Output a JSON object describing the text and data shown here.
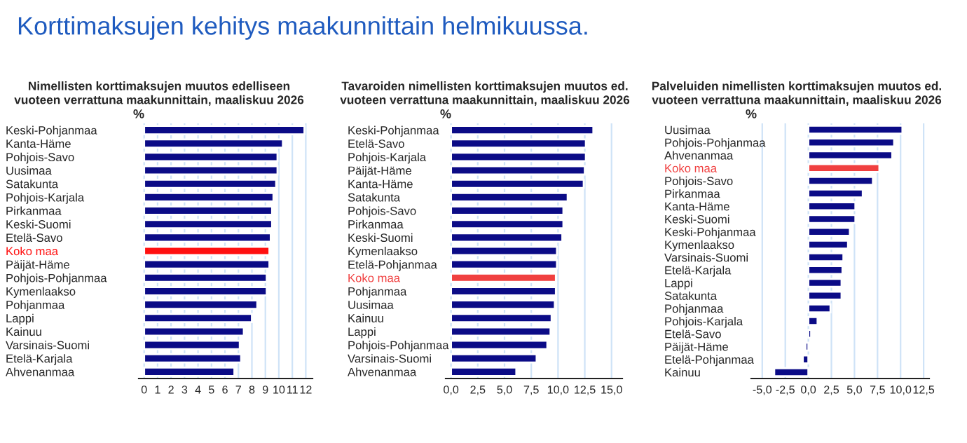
{
  "chart_data": [
    {
      "type": "bar",
      "orientation": "horizontal",
      "title": "Nimellisten korttimaksujen muutos edelliseen\nvuoteen verrattuna maakunnittain, maaliskuu 2026",
      "annotations": [
        "Korttimaksujen kehitys maakunnittain helmikuussa.",
        "%"
      ],
      "categories": [
        "Keski-Pohjanmaa",
        "Kanta-Häme",
        "Pohjois-Savo",
        "Uusimaa",
        "Satakunta",
        "Pohjois-Karjala",
        "Pirkanmaa",
        "Keski-Suomi",
        "Etelä-Savo",
        "Koko maa",
        "Päijät-Häme",
        "Pohjois-Pohjanmaa",
        "Kymenlaakso",
        "Pohjanmaa",
        "Lappi",
        "Kainuu",
        "Varsinais-Suomi",
        "Etelä-Karjala",
        "Ahvenanmaa"
      ],
      "values": [
        11.9,
        10.3,
        9.9,
        9.9,
        9.8,
        9.6,
        9.5,
        9.5,
        9.4,
        9.3,
        9.3,
        9.1,
        9.1,
        8.4,
        8.0,
        7.4,
        7.1,
        7.2,
        6.7
      ],
      "colors": [
        "#0b0b86",
        "#0b0b86",
        "#0b0b86",
        "#0b0b86",
        "#0b0b86",
        "#0b0b86",
        "#0b0b86",
        "#0b0b86",
        "#0b0b86",
        "#ff1010",
        "#0b0b86",
        "#0b0b86",
        "#0b0b86",
        "#0b0b86",
        "#0b0b86",
        "#0b0b86",
        "#0b0b86",
        "#0b0b86",
        "#0b0b86"
      ],
      "xlim": [
        -0.4,
        12.5
      ],
      "xticks": [
        0,
        1,
        2,
        3,
        4,
        5,
        6,
        7,
        8,
        9,
        10,
        11,
        12
      ],
      "grid": "x"
    },
    {
      "type": "bar",
      "orientation": "horizontal",
      "title": "Tavaroiden nimellisten korttimaksujen muutos ed.\nvuoteen verrattuna maakunnittain, maaliskuu 2026",
      "annotations": [
        "%"
      ],
      "categories": [
        "Keski-Pohjanmaa",
        "Etelä-Savo",
        "Pohjois-Karjala",
        "Päijät-Häme",
        "Kanta-Häme",
        "Satakunta",
        "Pohjois-Savo",
        "Pirkanmaa",
        "Keski-Suomi",
        "Kymenlaakso",
        "Etelä-Pohjanmaa",
        "Koko maa",
        "Pohjanmaa",
        "Uusimaa",
        "Kainuu",
        "Lappi",
        "Pohjois-Pohjanmaa",
        "Varsinais-Suomi",
        "Ahvenanmaa"
      ],
      "values": [
        13.3,
        12.6,
        12.6,
        12.5,
        12.4,
        10.9,
        10.5,
        10.5,
        10.4,
        9.9,
        9.9,
        9.8,
        9.8,
        9.7,
        9.4,
        9.3,
        9.0,
        8.0,
        6.1
      ],
      "colors": [
        "#0b0b86",
        "#0b0b86",
        "#0b0b86",
        "#0b0b86",
        "#0b0b86",
        "#0b0b86",
        "#0b0b86",
        "#0b0b86",
        "#0b0b86",
        "#0b0b86",
        "#0b0b86",
        "#f04040",
        "#0b0b86",
        "#0b0b86",
        "#0b0b86",
        "#0b0b86",
        "#0b0b86",
        "#0b0b86",
        "#0b0b86"
      ],
      "xlim": [
        -0.5,
        16
      ],
      "xticks": [
        {
          "value": 0,
          "label": "0,0"
        },
        {
          "value": 2.5,
          "label": "2,5"
        },
        {
          "value": 5,
          "label": "5,0"
        },
        {
          "value": 7.5,
          "label": "7,5"
        },
        {
          "value": 10,
          "label": "10,0"
        },
        {
          "value": 12.5,
          "label": "12,5"
        },
        {
          "value": 15,
          "label": "15,0"
        }
      ],
      "grid": "x"
    },
    {
      "type": "bar",
      "orientation": "horizontal",
      "title": "Palveluiden nimellisten korttimaksujen muutos ed.\nvuoteen verrattuna maakunnittain, maaliskuu 2026",
      "annotations": [
        "%"
      ],
      "categories": [
        "Uusimaa",
        "Pohjois-Pohjanmaa",
        "Ahvenanmaa",
        "Koko maa",
        "Pohjois-Savo",
        "Pirkanmaa",
        "Kanta-Häme",
        "Keski-Suomi",
        "Keski-Pohjanmaa",
        "Kymenlaakso",
        "Varsinais-Suomi",
        "Etelä-Karjala",
        "Lappi",
        "Satakunta",
        "Pohjanmaa",
        "Pohjois-Karjala",
        "Etelä-Savo",
        "Päijät-Häme",
        "Etelä-Pohjanmaa",
        "Kainuu"
      ],
      "values": [
        10.2,
        9.3,
        9.1,
        7.7,
        7.0,
        5.9,
        5.1,
        5.1,
        4.5,
        4.3,
        3.8,
        3.7,
        3.6,
        3.6,
        2.4,
        1.0,
        0.3,
        -0.3,
        -0.6,
        -3.7
      ],
      "colors": [
        "#0b0b86",
        "#0b0b86",
        "#0b0b86",
        "#f04040",
        "#0b0b86",
        "#0b0b86",
        "#0b0b86",
        "#0b0b86",
        "#0b0b86",
        "#0b0b86",
        "#0b0b86",
        "#0b0b86",
        "#0b0b86",
        "#0b0b86",
        "#0b0b86",
        "#0b0b86",
        "#0b0b86",
        "#0b0b86",
        "#0b0b86",
        "#0b0b86"
      ],
      "xlim": [
        -6.2,
        13.1
      ],
      "xticks": [
        {
          "value": -5,
          "label": "-5,0"
        },
        {
          "value": -2.5,
          "label": "-2,5"
        },
        {
          "value": 0,
          "label": "0,0"
        },
        {
          "value": 2.5,
          "label": "2,5"
        },
        {
          "value": 5,
          "label": "5,0"
        },
        {
          "value": 7.5,
          "label": "7,5"
        },
        {
          "value": 10,
          "label": "10,0"
        },
        {
          "value": 12.5,
          "label": "12,5"
        }
      ],
      "grid": "x"
    }
  ]
}
